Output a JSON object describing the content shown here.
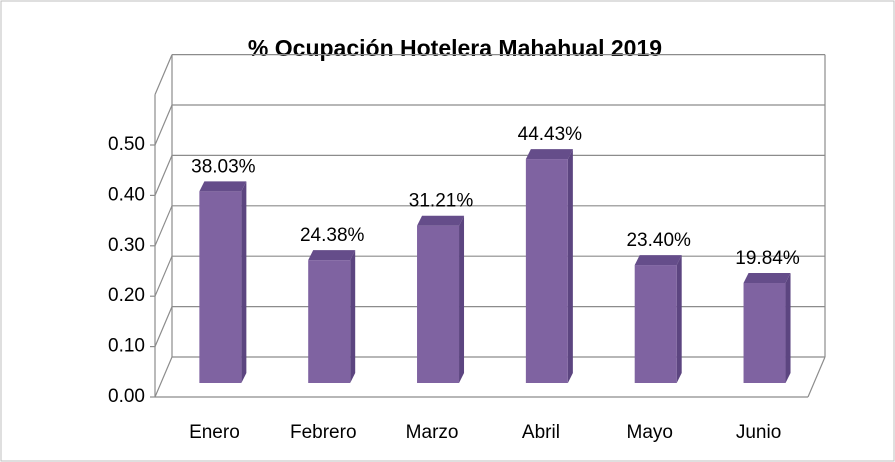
{
  "chart_data": {
    "type": "bar3d",
    "title": "% Ocupación Hotelera Mahahual 2019",
    "categories": [
      "Enero",
      "Febrero",
      "Marzo",
      "Abril",
      "Mayo",
      "Junio"
    ],
    "values": [
      0.3803,
      0.2438,
      0.3121,
      0.4443,
      0.234,
      0.1984
    ],
    "value_labels": [
      "38.03%",
      "24.38%",
      "31.21%",
      "44.43%",
      "23.40%",
      "19.84%"
    ],
    "color": "#7f63a1",
    "ylim": [
      0,
      0.6
    ],
    "yticks": [
      {
        "value": 0,
        "label": "0.00"
      },
      {
        "value": 0.1,
        "label": "0.10"
      },
      {
        "value": 0.2,
        "label": "0.20"
      },
      {
        "value": 0.3,
        "label": "0.30"
      },
      {
        "value": 0.4,
        "label": "0.40"
      },
      {
        "value": 0.5,
        "label": "0.50"
      }
    ],
    "grid": true
  }
}
